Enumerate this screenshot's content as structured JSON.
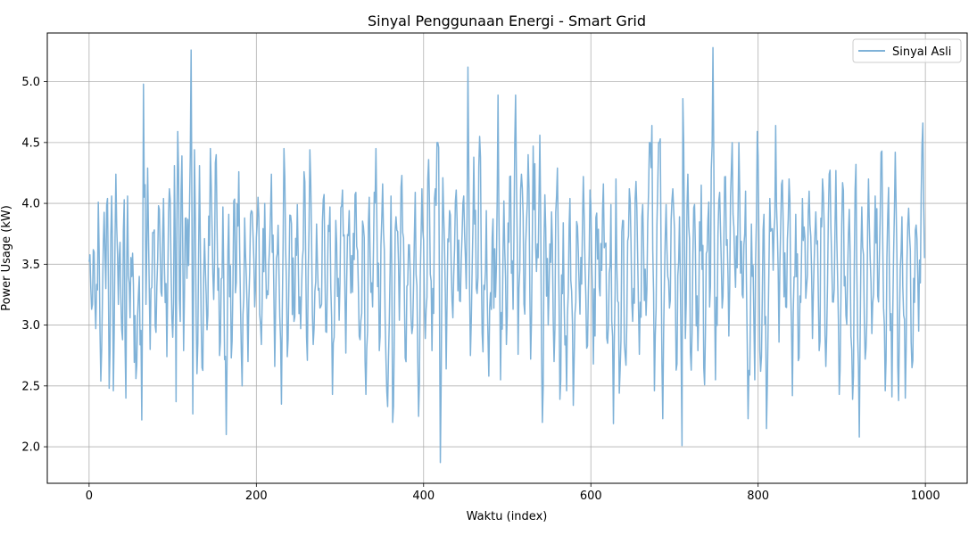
{
  "chart_data": {
    "type": "line",
    "title": "Sinyal Penggunaan Energi - Smart Grid",
    "xlabel": "Waktu (index)",
    "ylabel": "Power Usage (kW)",
    "xlim": [
      -50,
      1050
    ],
    "ylim": [
      1.7,
      5.4
    ],
    "xticks": [
      0,
      200,
      400,
      600,
      800,
      1000
    ],
    "xtick_labels": [
      "0",
      "200",
      "400",
      "600",
      "800",
      "1000"
    ],
    "yticks": [
      2.0,
      2.5,
      3.0,
      3.5,
      4.0,
      4.5,
      5.0
    ],
    "ytick_labels": [
      "2.0",
      "2.5",
      "3.0",
      "3.5",
      "4.0",
      "4.5",
      "5.0"
    ],
    "grid": true,
    "legend_position": "top-right",
    "series": [
      {
        "name": "Sinyal Asli",
        "color": "#7fb2d8",
        "x_start": 0,
        "x_end": 999,
        "anchors": [
          [
            0,
            3.52
          ],
          [
            3,
            3.13
          ],
          [
            5,
            3.62
          ],
          [
            8,
            2.97
          ],
          [
            11,
            4.01
          ],
          [
            14,
            2.54
          ],
          [
            17,
            3.67
          ],
          [
            20,
            3.3
          ],
          [
            22,
            4.04
          ],
          [
            24,
            2.48
          ],
          [
            27,
            4.06
          ],
          [
            29,
            2.46
          ],
          [
            32,
            4.24
          ],
          [
            35,
            3.17
          ],
          [
            37,
            3.68
          ],
          [
            40,
            2.88
          ],
          [
            42,
            4.03
          ],
          [
            44,
            2.4
          ],
          [
            46,
            4.06
          ],
          [
            49,
            3.06
          ],
          [
            52,
            3.59
          ],
          [
            56,
            2.56
          ],
          [
            60,
            3.4
          ],
          [
            63,
            2.22
          ],
          [
            65,
            4.98
          ],
          [
            68,
            3.17
          ],
          [
            70,
            4.29
          ],
          [
            73,
            2.8
          ],
          [
            76,
            3.76
          ],
          [
            80,
            2.94
          ],
          [
            83,
            3.98
          ],
          [
            86,
            3.27
          ],
          [
            89,
            4.04
          ],
          [
            93,
            2.74
          ],
          [
            96,
            4.12
          ],
          [
            100,
            2.9
          ],
          [
            102,
            4.31
          ],
          [
            104,
            2.37
          ],
          [
            106,
            4.59
          ],
          [
            109,
            3.03
          ],
          [
            111,
            4.39
          ],
          [
            113,
            2.79
          ],
          [
            116,
            3.88
          ],
          [
            119,
            3.49
          ],
          [
            122,
            5.26
          ],
          [
            124,
            2.27
          ],
          [
            126,
            4.44
          ],
          [
            129,
            2.6
          ],
          [
            132,
            4.31
          ],
          [
            135,
            2.65
          ],
          [
            138,
            3.71
          ],
          [
            142,
            3.08
          ],
          [
            145,
            4.45
          ],
          [
            149,
            3.21
          ],
          [
            152,
            4.4
          ],
          [
            156,
            2.75
          ],
          [
            160,
            3.97
          ],
          [
            164,
            2.1
          ],
          [
            167,
            3.91
          ],
          [
            170,
            2.73
          ],
          [
            173,
            4.02
          ],
          [
            176,
            3.35
          ],
          [
            179,
            4.26
          ],
          [
            183,
            2.5
          ],
          [
            186,
            3.88
          ],
          [
            190,
            2.7
          ],
          [
            194,
            3.94
          ],
          [
            198,
            3.15
          ],
          [
            202,
            4.05
          ],
          [
            206,
            2.84
          ],
          [
            210,
            4.0
          ],
          [
            214,
            3.25
          ],
          [
            218,
            4.24
          ],
          [
            222,
            2.66
          ],
          [
            226,
            3.82
          ],
          [
            230,
            2.35
          ],
          [
            233,
            4.45
          ],
          [
            237,
            2.74
          ],
          [
            241,
            3.9
          ],
          [
            245,
            3.03
          ],
          [
            249,
            3.99
          ],
          [
            253,
            2.97
          ],
          [
            257,
            4.26
          ],
          [
            261,
            2.71
          ],
          [
            264,
            4.44
          ],
          [
            268,
            2.84
          ],
          [
            272,
            3.83
          ],
          [
            276,
            3.14
          ],
          [
            280,
            4.03
          ],
          [
            284,
            2.94
          ],
          [
            288,
            3.97
          ],
          [
            291,
            2.43
          ],
          [
            295,
            3.86
          ],
          [
            299,
            3.04
          ],
          [
            303,
            4.11
          ],
          [
            307,
            2.77
          ],
          [
            311,
            3.94
          ],
          [
            315,
            3.27
          ],
          [
            319,
            4.09
          ],
          [
            324,
            2.88
          ],
          [
            328,
            3.81
          ],
          [
            331,
            2.43
          ],
          [
            335,
            4.05
          ],
          [
            339,
            3.15
          ],
          [
            343,
            4.45
          ],
          [
            347,
            2.79
          ],
          [
            351,
            4.16
          ],
          [
            354,
            3.05
          ],
          [
            357,
            2.33
          ],
          [
            361,
            4.06
          ],
          [
            363,
            2.2
          ],
          [
            367,
            3.89
          ],
          [
            371,
            3.04
          ],
          [
            374,
            4.23
          ],
          [
            378,
            2.73
          ],
          [
            382,
            3.66
          ],
          [
            386,
            2.93
          ],
          [
            390,
            4.09
          ],
          [
            394,
            2.25
          ],
          [
            398,
            4.12
          ],
          [
            402,
            2.89
          ],
          [
            406,
            4.36
          ],
          [
            410,
            2.79
          ],
          [
            414,
            4.12
          ],
          [
            418,
            4.46
          ],
          [
            420,
            1.87
          ],
          [
            423,
            4.21
          ],
          [
            427,
            2.64
          ],
          [
            431,
            3.94
          ],
          [
            435,
            3.06
          ],
          [
            439,
            4.11
          ],
          [
            443,
            3.2
          ],
          [
            447,
            4.0
          ],
          [
            451,
            3.3
          ],
          [
            453,
            5.12
          ],
          [
            456,
            2.75
          ],
          [
            460,
            4.38
          ],
          [
            464,
            3.26
          ],
          [
            467,
            4.55
          ],
          [
            471,
            2.78
          ],
          [
            475,
            3.94
          ],
          [
            478,
            2.58
          ],
          [
            482,
            3.72
          ],
          [
            486,
            3.23
          ],
          [
            489,
            4.89
          ],
          [
            492,
            2.55
          ],
          [
            496,
            4.02
          ],
          [
            499,
            2.84
          ],
          [
            503,
            4.22
          ],
          [
            507,
            3.13
          ],
          [
            510,
            4.89
          ],
          [
            513,
            2.76
          ],
          [
            517,
            4.24
          ],
          [
            521,
            3.09
          ],
          [
            525,
            4.4
          ],
          [
            528,
            2.72
          ],
          [
            531,
            4.47
          ],
          [
            535,
            3.44
          ],
          [
            539,
            4.56
          ],
          [
            542,
            2.2
          ],
          [
            545,
            4.07
          ],
          [
            549,
            3.0
          ],
          [
            553,
            3.93
          ],
          [
            556,
            2.7
          ],
          [
            560,
            4.29
          ],
          [
            563,
            2.39
          ],
          [
            567,
            3.84
          ],
          [
            571,
            2.46
          ],
          [
            575,
            4.04
          ],
          [
            579,
            2.34
          ],
          [
            583,
            3.85
          ],
          [
            587,
            3.09
          ],
          [
            591,
            4.22
          ],
          [
            595,
            2.81
          ],
          [
            599,
            4.11
          ],
          [
            603,
            2.68
          ],
          [
            607,
            3.92
          ],
          [
            611,
            3.24
          ],
          [
            615,
            4.16
          ],
          [
            620,
            2.85
          ],
          [
            624,
            3.99
          ],
          [
            627,
            2.19
          ],
          [
            630,
            4.2
          ],
          [
            634,
            2.44
          ],
          [
            638,
            3.86
          ],
          [
            642,
            2.67
          ],
          [
            646,
            4.12
          ],
          [
            650,
            3.03
          ],
          [
            654,
            4.18
          ],
          [
            658,
            2.76
          ],
          [
            662,
            3.99
          ],
          [
            666,
            3.08
          ],
          [
            670,
            4.5
          ],
          [
            673,
            4.64
          ],
          [
            676,
            2.46
          ],
          [
            680,
            4.15
          ],
          [
            683,
            4.53
          ],
          [
            686,
            2.23
          ],
          [
            690,
            3.99
          ],
          [
            694,
            3.14
          ],
          [
            698,
            4.12
          ],
          [
            702,
            2.63
          ],
          [
            706,
            3.89
          ],
          [
            709,
            2.01
          ],
          [
            710,
            4.86
          ],
          [
            713,
            2.89
          ],
          [
            716,
            4.24
          ],
          [
            720,
            2.63
          ],
          [
            724,
            3.99
          ],
          [
            728,
            2.79
          ],
          [
            732,
            4.15
          ],
          [
            736,
            2.51
          ],
          [
            740,
            3.87
          ],
          [
            743,
            3.32
          ],
          [
            746,
            5.28
          ],
          [
            749,
            2.55
          ],
          [
            753,
            4.02
          ],
          [
            757,
            3.14
          ],
          [
            761,
            4.22
          ],
          [
            765,
            2.91
          ],
          [
            769,
            4.5
          ],
          [
            773,
            3.31
          ],
          [
            777,
            4.5
          ],
          [
            781,
            3.25
          ],
          [
            785,
            4.1
          ],
          [
            788,
            2.23
          ],
          [
            792,
            3.83
          ],
          [
            796,
            2.55
          ],
          [
            799,
            4.59
          ],
          [
            803,
            2.62
          ],
          [
            807,
            3.91
          ],
          [
            810,
            2.15
          ],
          [
            814,
            4.04
          ],
          [
            818,
            3.45
          ],
          [
            821,
            4.64
          ],
          [
            825,
            2.86
          ],
          [
            829,
            4.19
          ],
          [
            833,
            3.15
          ],
          [
            837,
            4.2
          ],
          [
            841,
            2.42
          ],
          [
            845,
            3.91
          ],
          [
            849,
            2.73
          ],
          [
            853,
            4.04
          ],
          [
            857,
            3.22
          ],
          [
            861,
            4.1
          ],
          [
            865,
            2.89
          ],
          [
            869,
            3.93
          ],
          [
            873,
            2.79
          ],
          [
            877,
            4.2
          ],
          [
            881,
            2.66
          ],
          [
            885,
            4.24
          ],
          [
            889,
            3.19
          ],
          [
            893,
            4.27
          ],
          [
            897,
            2.43
          ],
          [
            901,
            4.17
          ],
          [
            905,
            3.08
          ],
          [
            909,
            3.95
          ],
          [
            913,
            2.39
          ],
          [
            917,
            4.32
          ],
          [
            921,
            2.08
          ],
          [
            924,
            3.97
          ],
          [
            928,
            2.72
          ],
          [
            932,
            4.2
          ],
          [
            936,
            2.93
          ],
          [
            940,
            4.06
          ],
          [
            944,
            3.19
          ],
          [
            948,
            4.43
          ],
          [
            952,
            2.46
          ],
          [
            956,
            4.13
          ],
          [
            960,
            2.41
          ],
          [
            964,
            4.42
          ],
          [
            968,
            2.38
          ],
          [
            972,
            3.89
          ],
          [
            976,
            2.4
          ],
          [
            980,
            3.96
          ],
          [
            984,
            2.65
          ],
          [
            988,
            3.78
          ],
          [
            992,
            2.95
          ],
          [
            995,
            4.07
          ],
          [
            997,
            4.66
          ],
          [
            999,
            3.55
          ]
        ]
      }
    ]
  }
}
